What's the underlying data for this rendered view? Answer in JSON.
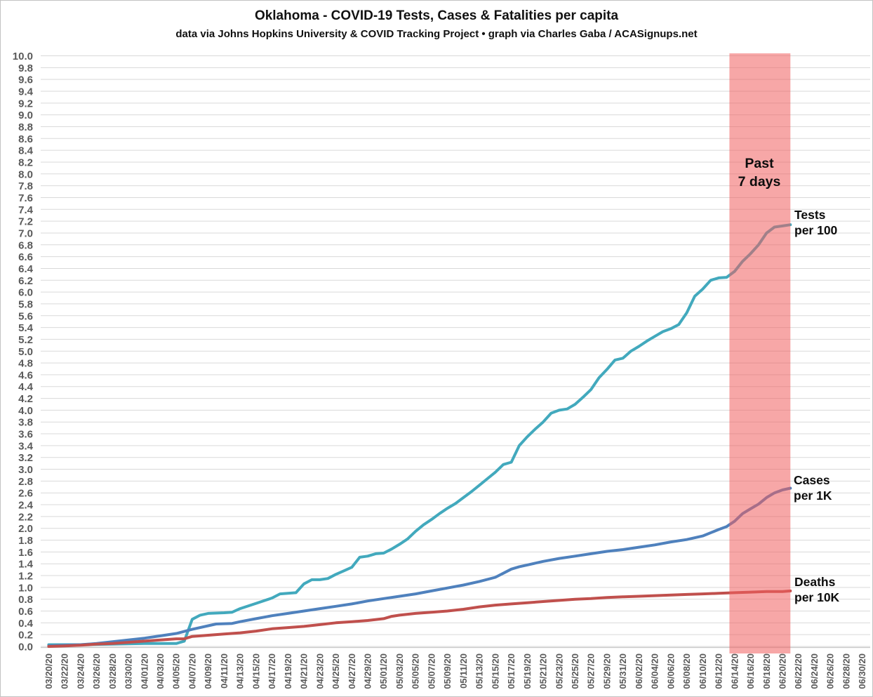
{
  "chart_data": {
    "type": "line",
    "title": "Oklahoma - COVID-19 Tests, Cases & Fatalities per capita",
    "subtitle": "data via Johns Hopkins University & COVID Tracking Project • graph via Charles Gaba / ACASignups.net",
    "grid": true,
    "legend_position": "end-of-line labels",
    "y_axis": {
      "min": 0.0,
      "max": 10.0,
      "step": 0.2,
      "tick_format": "one-decimal"
    },
    "x_axis": {
      "start_date": "03/20/20",
      "end_date": "06/30/20",
      "days_per_tick": 2,
      "tick_labels": [
        "03/20/20",
        "03/22/20",
        "03/24/20",
        "03/26/20",
        "03/28/20",
        "03/30/20",
        "04/01/20",
        "04/03/20",
        "04/05/20",
        "04/07/20",
        "04/09/20",
        "04/11/20",
        "04/13/20",
        "04/15/20",
        "04/17/20",
        "04/19/20",
        "04/21/20",
        "04/23/20",
        "04/25/20",
        "04/27/20",
        "04/29/20",
        "05/01/20",
        "05/03/20",
        "05/05/20",
        "05/07/20",
        "05/09/20",
        "05/11/20",
        "05/13/20",
        "05/15/20",
        "05/17/20",
        "05/19/20",
        "05/21/20",
        "05/23/20",
        "05/25/20",
        "05/27/20",
        "05/29/20",
        "05/31/20",
        "06/02/20",
        "06/04/20",
        "06/06/20",
        "06/08/20",
        "06/10/20",
        "06/12/20",
        "06/14/20",
        "06/16/20",
        "06/18/20",
        "06/20/20",
        "06/22/20",
        "06/24/20",
        "06/26/20",
        "06/28/20",
        "06/30/20"
      ]
    },
    "highlight_band": {
      "label": "Past\n7 days",
      "start_day": 85.35,
      "end_day": 93,
      "color": "rgba(240,95,95,0.55)"
    },
    "colors": {
      "gridline": "#D9D9D9",
      "axis_line": "#C9C9C9",
      "axis_text": "#595959"
    },
    "series": [
      {
        "name": "Tests per 100",
        "annotation": "Tests\nper 100",
        "color": "#42A9BD",
        "points": [
          [
            0,
            0.03
          ],
          [
            4,
            0.03
          ],
          [
            8,
            0.04
          ],
          [
            12,
            0.05
          ],
          [
            16,
            0.05
          ],
          [
            17,
            0.09
          ],
          [
            18,
            0.46
          ],
          [
            19,
            0.53
          ],
          [
            20,
            0.56
          ],
          [
            22,
            0.57
          ],
          [
            23,
            0.58
          ],
          [
            24,
            0.64
          ],
          [
            26,
            0.73
          ],
          [
            28,
            0.82
          ],
          [
            29,
            0.89
          ],
          [
            30,
            0.9
          ],
          [
            31,
            0.91
          ],
          [
            32,
            1.06
          ],
          [
            33,
            1.13
          ],
          [
            34,
            1.13
          ],
          [
            35,
            1.15
          ],
          [
            36,
            1.22
          ],
          [
            37,
            1.28
          ],
          [
            38,
            1.34
          ],
          [
            39,
            1.51
          ],
          [
            40,
            1.53
          ],
          [
            41,
            1.57
          ],
          [
            42,
            1.58
          ],
          [
            43,
            1.65
          ],
          [
            44,
            1.73
          ],
          [
            45,
            1.82
          ],
          [
            46,
            1.95
          ],
          [
            47,
            2.06
          ],
          [
            48,
            2.15
          ],
          [
            49,
            2.25
          ],
          [
            50,
            2.34
          ],
          [
            51,
            2.42
          ],
          [
            52,
            2.52
          ],
          [
            53,
            2.62
          ],
          [
            54,
            2.73
          ],
          [
            55,
            2.84
          ],
          [
            56,
            2.95
          ],
          [
            57,
            3.08
          ],
          [
            58,
            3.12
          ],
          [
            59,
            3.4
          ],
          [
            60,
            3.55
          ],
          [
            61,
            3.68
          ],
          [
            62,
            3.8
          ],
          [
            63,
            3.95
          ],
          [
            64,
            4.0
          ],
          [
            65,
            4.02
          ],
          [
            66,
            4.1
          ],
          [
            67,
            4.22
          ],
          [
            68,
            4.35
          ],
          [
            69,
            4.55
          ],
          [
            70,
            4.69
          ],
          [
            71,
            4.85
          ],
          [
            72,
            4.88
          ],
          [
            73,
            5.0
          ],
          [
            74,
            5.08
          ],
          [
            75,
            5.17
          ],
          [
            76,
            5.25
          ],
          [
            77,
            5.33
          ],
          [
            78,
            5.38
          ],
          [
            79,
            5.45
          ],
          [
            80,
            5.65
          ],
          [
            81,
            5.93
          ],
          [
            82,
            6.05
          ],
          [
            83,
            6.2
          ],
          [
            84,
            6.24
          ],
          [
            85,
            6.25
          ],
          [
            86,
            6.35
          ],
          [
            87,
            6.52
          ],
          [
            88,
            6.65
          ],
          [
            89,
            6.8
          ],
          [
            90,
            7.0
          ],
          [
            91,
            7.1
          ],
          [
            92,
            7.12
          ],
          [
            93,
            7.14
          ]
        ]
      },
      {
        "name": "Cases per 1K",
        "annotation": "Cases\nper 1K",
        "color": "#4F81BD",
        "points": [
          [
            0,
            0.01
          ],
          [
            2,
            0.02
          ],
          [
            4,
            0.03
          ],
          [
            6,
            0.05
          ],
          [
            8,
            0.08
          ],
          [
            10,
            0.11
          ],
          [
            12,
            0.14
          ],
          [
            14,
            0.18
          ],
          [
            16,
            0.22
          ],
          [
            18,
            0.29
          ],
          [
            20,
            0.35
          ],
          [
            21,
            0.38
          ],
          [
            23,
            0.39
          ],
          [
            24,
            0.42
          ],
          [
            26,
            0.47
          ],
          [
            28,
            0.52
          ],
          [
            30,
            0.56
          ],
          [
            32,
            0.6
          ],
          [
            34,
            0.64
          ],
          [
            36,
            0.68
          ],
          [
            38,
            0.72
          ],
          [
            40,
            0.77
          ],
          [
            42,
            0.81
          ],
          [
            44,
            0.85
          ],
          [
            46,
            0.89
          ],
          [
            48,
            0.94
          ],
          [
            50,
            0.99
          ],
          [
            52,
            1.04
          ],
          [
            54,
            1.1
          ],
          [
            56,
            1.17
          ],
          [
            57,
            1.24
          ],
          [
            58,
            1.31
          ],
          [
            59,
            1.35
          ],
          [
            60,
            1.38
          ],
          [
            62,
            1.44
          ],
          [
            64,
            1.49
          ],
          [
            66,
            1.53
          ],
          [
            68,
            1.57
          ],
          [
            70,
            1.61
          ],
          [
            72,
            1.64
          ],
          [
            74,
            1.68
          ],
          [
            76,
            1.72
          ],
          [
            78,
            1.77
          ],
          [
            80,
            1.81
          ],
          [
            82,
            1.87
          ],
          [
            84,
            1.98
          ],
          [
            85,
            2.03
          ],
          [
            86,
            2.12
          ],
          [
            87,
            2.25
          ],
          [
            88,
            2.33
          ],
          [
            89,
            2.41
          ],
          [
            90,
            2.52
          ],
          [
            91,
            2.6
          ],
          [
            92,
            2.65
          ],
          [
            93,
            2.68
          ]
        ]
      },
      {
        "name": "Deaths per 10K",
        "annotation": "Deaths\nper 10K",
        "color": "#C0504D",
        "points": [
          [
            0,
            0.0
          ],
          [
            2,
            0.01
          ],
          [
            4,
            0.02
          ],
          [
            6,
            0.04
          ],
          [
            8,
            0.05
          ],
          [
            10,
            0.07
          ],
          [
            12,
            0.09
          ],
          [
            14,
            0.11
          ],
          [
            16,
            0.13
          ],
          [
            17,
            0.13
          ],
          [
            18,
            0.17
          ],
          [
            20,
            0.19
          ],
          [
            22,
            0.21
          ],
          [
            24,
            0.23
          ],
          [
            26,
            0.26
          ],
          [
            28,
            0.3
          ],
          [
            30,
            0.32
          ],
          [
            32,
            0.34
          ],
          [
            34,
            0.37
          ],
          [
            36,
            0.4
          ],
          [
            38,
            0.42
          ],
          [
            40,
            0.44
          ],
          [
            42,
            0.47
          ],
          [
            43,
            0.51
          ],
          [
            44,
            0.53
          ],
          [
            46,
            0.56
          ],
          [
            48,
            0.58
          ],
          [
            50,
            0.6
          ],
          [
            52,
            0.63
          ],
          [
            54,
            0.67
          ],
          [
            56,
            0.7
          ],
          [
            58,
            0.72
          ],
          [
            60,
            0.74
          ],
          [
            62,
            0.76
          ],
          [
            64,
            0.78
          ],
          [
            66,
            0.8
          ],
          [
            68,
            0.81
          ],
          [
            70,
            0.83
          ],
          [
            72,
            0.84
          ],
          [
            74,
            0.85
          ],
          [
            76,
            0.86
          ],
          [
            78,
            0.87
          ],
          [
            80,
            0.88
          ],
          [
            82,
            0.89
          ],
          [
            84,
            0.9
          ],
          [
            86,
            0.91
          ],
          [
            88,
            0.92
          ],
          [
            90,
            0.93
          ],
          [
            92,
            0.93
          ],
          [
            93,
            0.94
          ]
        ]
      }
    ]
  }
}
